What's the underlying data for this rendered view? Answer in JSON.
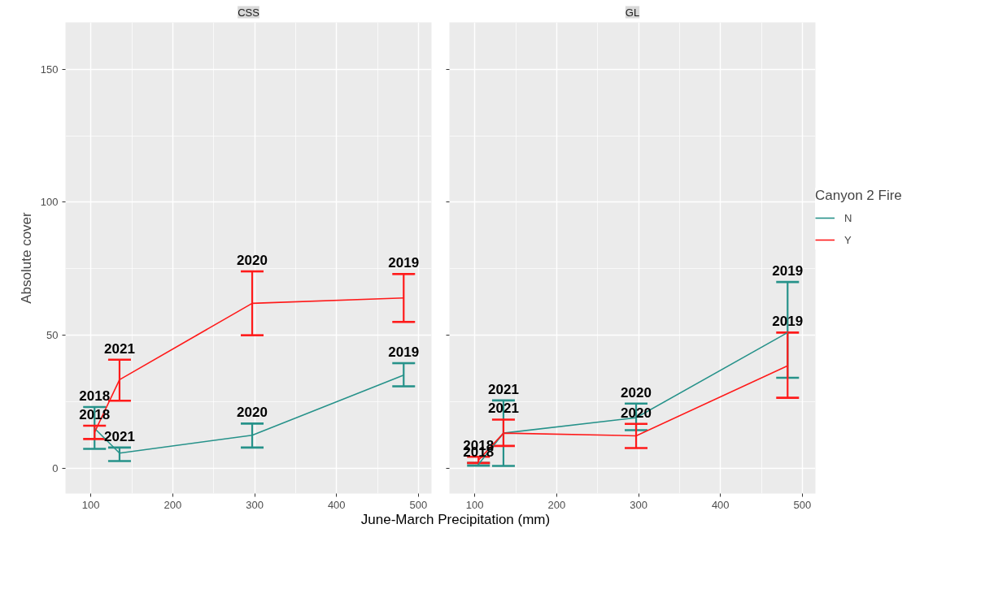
{
  "chart_data": [
    {
      "type": "line",
      "title": "CSS",
      "xlabel": "June-March Precipitation (mm)",
      "ylabel": "Absolute cover",
      "legend_title": "Canyon 2 Fire",
      "x": [
        104.5,
        135,
        297,
        482
      ],
      "xlim": [
        69,
        516
      ],
      "xticks": [
        100,
        200,
        300,
        400,
        500
      ],
      "ylim": [
        -9.5,
        167.6
      ],
      "yticks": [
        0,
        50,
        100,
        150
      ],
      "grid": true,
      "legend": "right",
      "marker": "none",
      "line_style": "solid",
      "series": [
        {
          "name": "N",
          "color": "#26928a",
          "values": [
            15,
            5.7,
            12.4,
            35
          ],
          "errors": [
            [
              7.3,
              23
            ],
            [
              2.7,
              7.8
            ],
            [
              7.8,
              16.8
            ],
            [
              30.8,
              39.5
            ]
          ]
        },
        {
          "name": "Y",
          "color": "#ff1a1a",
          "values": [
            13.5,
            33.3,
            62,
            64
          ],
          "errors": [
            [
              11,
              16
            ],
            [
              25.4,
              40.8
            ],
            [
              50,
              74
            ],
            [
              55,
              73
            ]
          ]
        }
      ],
      "annotations": [
        {
          "text": "2018",
          "x": 104.5,
          "y": 23
        },
        {
          "text": "2021",
          "x": 135,
          "y": 7.8
        },
        {
          "text": "2020",
          "x": 297,
          "y": 16.8
        },
        {
          "text": "2019",
          "x": 482,
          "y": 39.5
        },
        {
          "text": "2018",
          "x": 104.5,
          "y": 16
        },
        {
          "text": "2021",
          "x": 135,
          "y": 40.8
        },
        {
          "text": "2020",
          "x": 297,
          "y": 74
        },
        {
          "text": "2019",
          "x": 482,
          "y": 73
        }
      ]
    },
    {
      "type": "line",
      "title": "GL",
      "x": [
        104.5,
        135,
        297,
        482
      ],
      "xlim": [
        69,
        516
      ],
      "xticks": [
        100,
        200,
        300,
        400,
        500
      ],
      "ylim": [
        -9.5,
        167.6
      ],
      "yticks": [
        0,
        50,
        100,
        150
      ],
      "tick_labels": "x",
      "grid": true,
      "marker": "none",
      "line_style": "solid",
      "series": [
        {
          "color": "#26928a",
          "values": [
            1.5,
            13.2,
            19,
            51
          ],
          "errors": [
            [
              1,
              2
            ],
            [
              0.9,
              25.5
            ],
            [
              14.3,
              24.3
            ],
            [
              34,
              70
            ]
          ]
        },
        {
          "color": "#ff1a1a",
          "values": [
            3,
            13.2,
            12.2,
            38.5
          ],
          "errors": [
            [
              2,
              4.3
            ],
            [
              8.4,
              18.3
            ],
            [
              7.6,
              16.7
            ],
            [
              26.5,
              51
            ]
          ]
        }
      ],
      "annotations": [
        {
          "text": "2018",
          "x": 104.5,
          "y": 2
        },
        {
          "text": "2021",
          "x": 135,
          "y": 25.5
        },
        {
          "text": "2020",
          "x": 297,
          "y": 24.3
        },
        {
          "text": "2019",
          "x": 482,
          "y": 70
        },
        {
          "text": "2018",
          "x": 104.5,
          "y": 4.3
        },
        {
          "text": "2021",
          "x": 135,
          "y": 18.3
        },
        {
          "text": "2020",
          "x": 297,
          "y": 16.7
        },
        {
          "text": "2019",
          "x": 482,
          "y": 51
        }
      ]
    }
  ]
}
